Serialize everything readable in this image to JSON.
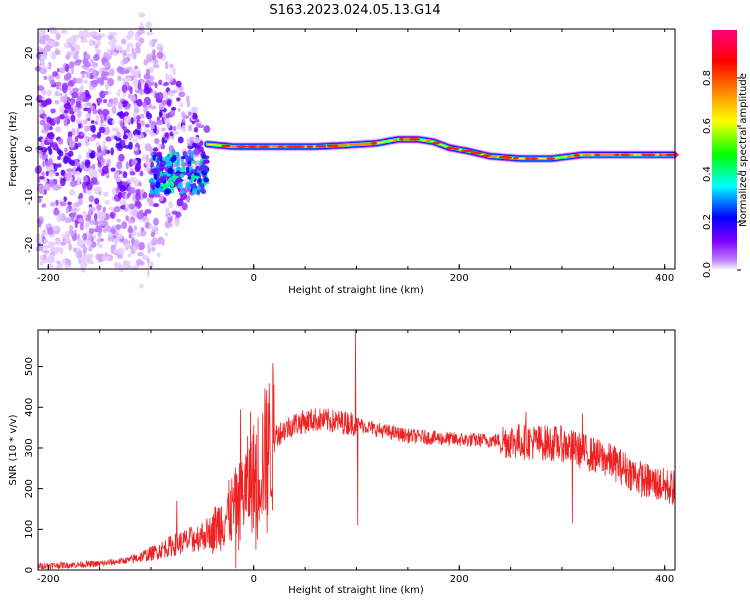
{
  "title": "S163.2023.024.05.13.G14",
  "chart_data": [
    {
      "type": "heatmap",
      "xlabel": "Height of straight line (km)",
      "ylabel": "Frequency (Hz)",
      "xlim": [
        -210,
        410
      ],
      "ylim": [
        -25,
        25
      ],
      "xticks": [
        -200,
        0,
        200,
        400
      ],
      "yticks": [
        -20,
        -10,
        0,
        10,
        20
      ],
      "colorbar": {
        "label": "Normalized spectral amplitude",
        "range": [
          0,
          1
        ],
        "ticks": [
          0.0,
          0.2,
          0.4,
          0.6,
          0.8
        ],
        "tick_labels": [
          "0.0",
          "0.2",
          "0.4",
          "0.6",
          "0.8"
        ],
        "colormap": [
          "#ffffff",
          "#7f00ff",
          "#0000ff",
          "#00ffff",
          "#00ff00",
          "#ffff00",
          "#ff7f00",
          "#ff0000",
          "#ff007f"
        ]
      },
      "ridge": {
        "x": [
          -45,
          -20,
          0,
          30,
          60,
          90,
          120,
          140,
          160,
          175,
          190,
          210,
          230,
          260,
          290,
          320,
          360,
          410
        ],
        "y": [
          1,
          0.5,
          0.5,
          0.5,
          0.5,
          0.8,
          1.2,
          2,
          2,
          1.5,
          0.3,
          -0.5,
          -1.5,
          -2,
          -2,
          -1.2,
          -1.2,
          -1.2
        ]
      },
      "noise_region_x": [
        -210,
        -45
      ]
    },
    {
      "type": "line",
      "xlabel": "Height of straight line (km)",
      "ylabel": "SNR (10 * v/v)",
      "xlim": [
        -210,
        410
      ],
      "ylim": [
        0,
        590
      ],
      "xticks": [
        -200,
        0,
        200,
        400
      ],
      "yticks": [
        0,
        100,
        200,
        300,
        400,
        500
      ],
      "color": "#ee2222",
      "envelope": {
        "x": [
          -210,
          -150,
          -120,
          -100,
          -80,
          -60,
          -40,
          -20,
          0,
          20,
          40,
          60,
          80,
          100,
          120,
          150,
          200,
          250,
          300,
          350,
          380,
          410
        ],
        "y": [
          10,
          15,
          25,
          40,
          60,
          75,
          95,
          150,
          230,
          330,
          360,
          370,
          365,
          360,
          345,
          330,
          320,
          318,
          310,
          265,
          220,
          200
        ]
      },
      "spikes": [
        {
          "x": -3,
          "y": 390
        },
        {
          "x": -13,
          "y": 395
        },
        {
          "x": 14,
          "y": 410
        },
        {
          "x": 99,
          "y": 590
        },
        {
          "x": 101,
          "y": 110
        },
        {
          "x": 13,
          "y": 90
        },
        {
          "x": 310,
          "y": 115
        },
        {
          "x": 265,
          "y": 390
        },
        {
          "x": 320,
          "y": 385
        },
        {
          "x": -75,
          "y": 170
        }
      ]
    }
  ]
}
